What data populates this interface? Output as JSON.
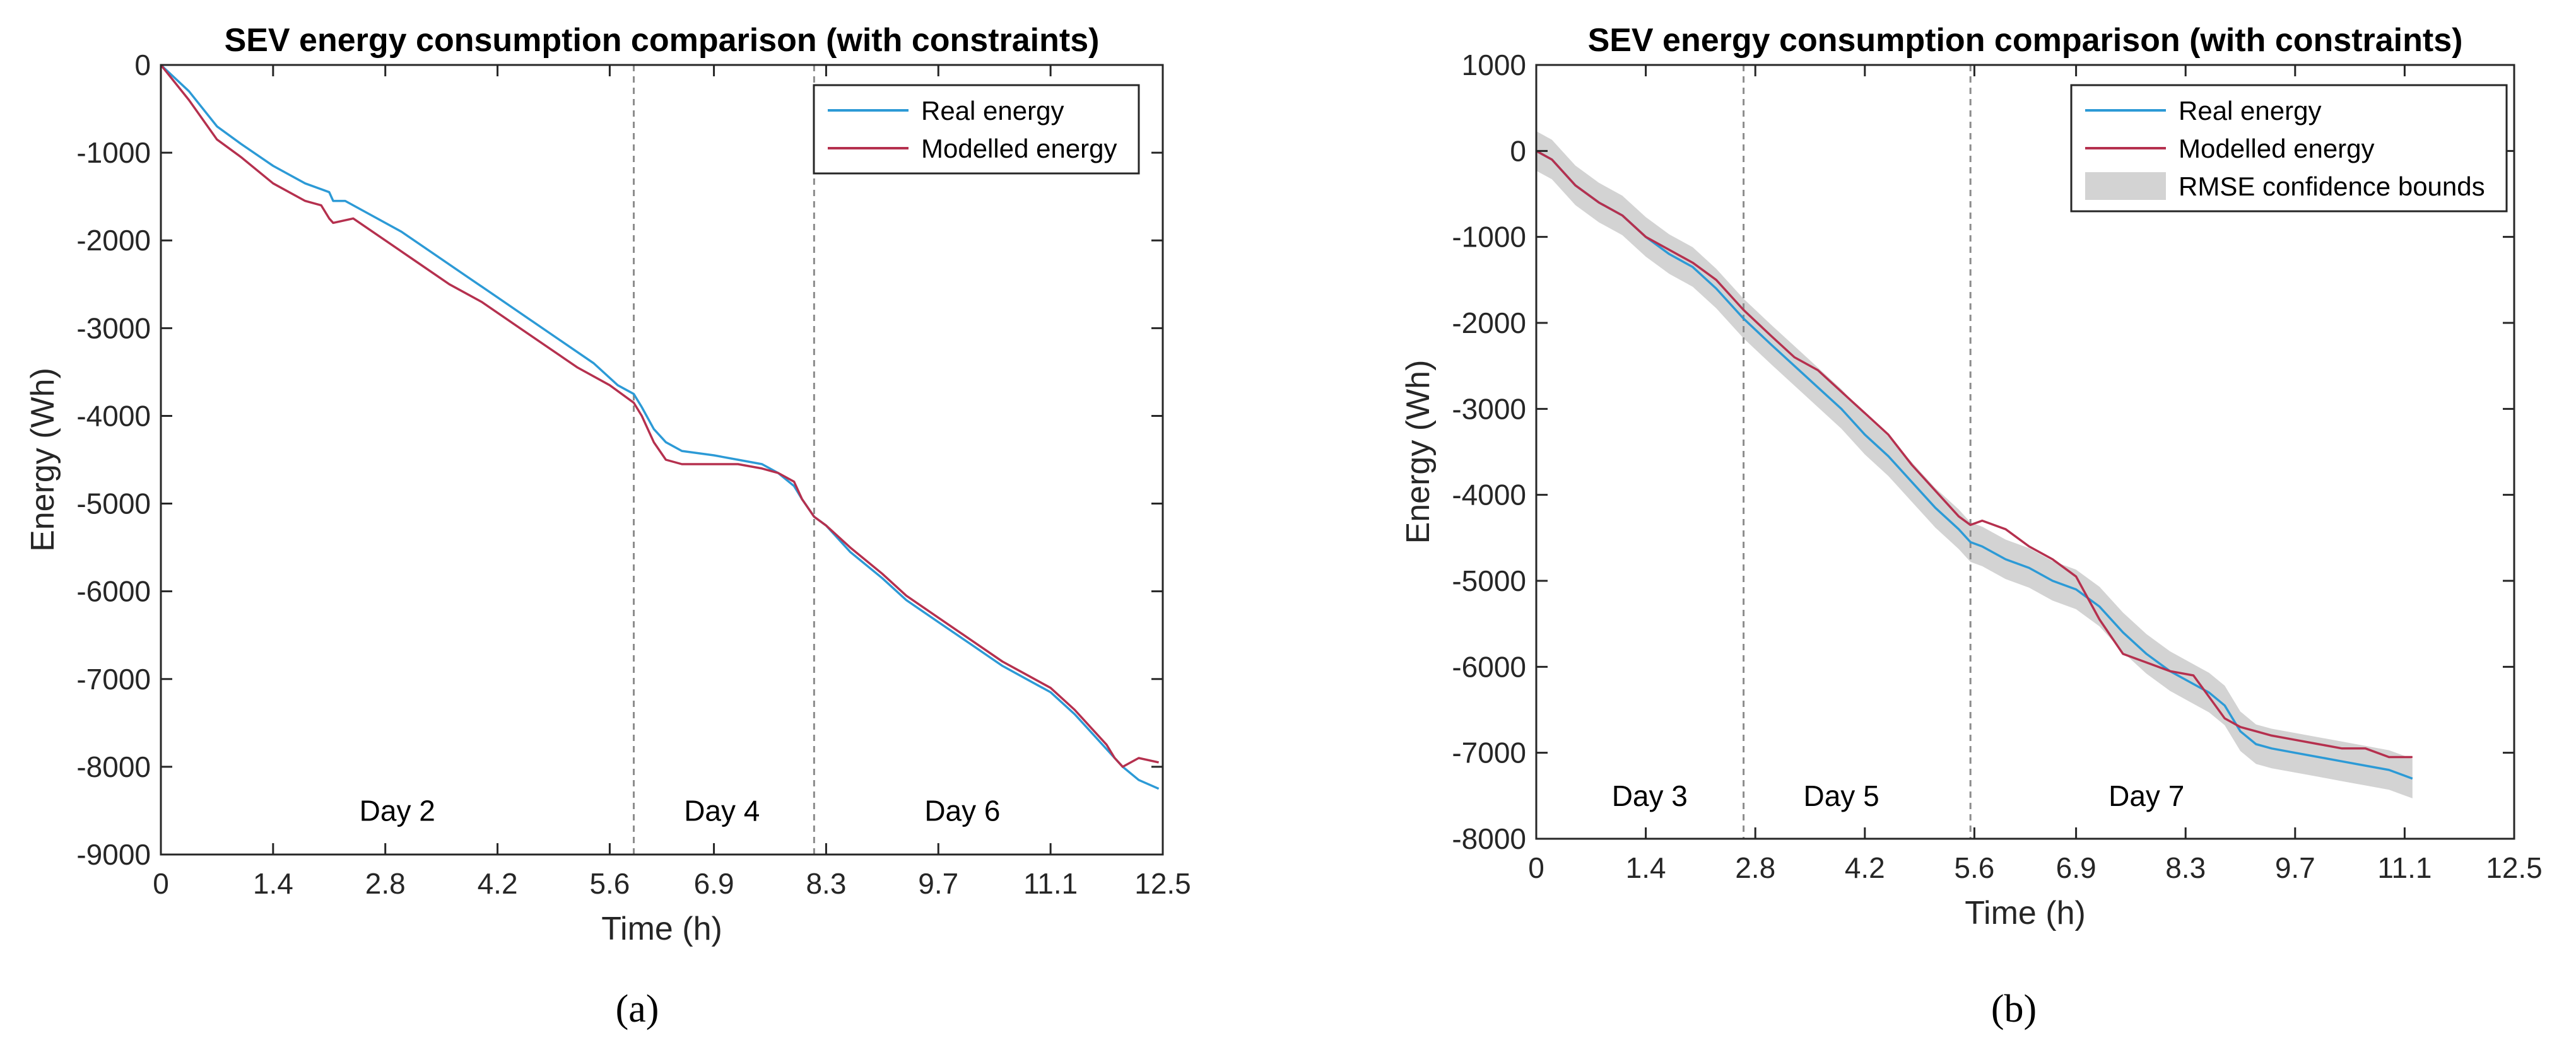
{
  "colors": {
    "real": "#2c9ad6",
    "modelled": "#b5304e",
    "band": "#d3d3d3",
    "divider": "#8c8c8c"
  },
  "captions": [
    "(a)",
    "(b)"
  ],
  "chart_data": [
    {
      "type": "line",
      "title": "SEV energy consumption comparison (with constraints)",
      "xlabel": "Time (h)",
      "ylabel": "Energy (Wh)",
      "xlim": [
        0,
        12.5
      ],
      "ylim": [
        -9000,
        0
      ],
      "xticks": [
        0,
        1.4,
        2.8,
        4.2,
        5.6,
        6.9,
        8.3,
        9.7,
        11.1,
        12.5
      ],
      "xtick_labels": [
        "0",
        "1.4",
        "2.8",
        "4.2",
        "5.6",
        "6.9",
        "8.3",
        "9.7",
        "11.1",
        "12.5"
      ],
      "yticks": [
        0,
        -1000,
        -2000,
        -3000,
        -4000,
        -5000,
        -6000,
        -7000,
        -8000,
        -9000
      ],
      "ytick_labels": [
        "0",
        "-1000",
        "-2000",
        "-3000",
        "-4000",
        "-5000",
        "-6000",
        "-7000",
        "-8000",
        "-9000"
      ],
      "grid": false,
      "legend": "top-right",
      "dividers": [
        5.9,
        8.15
      ],
      "day_labels": [
        {
          "text": "Day 2",
          "x": 2.95,
          "y": -8500
        },
        {
          "text": "Day 4",
          "x": 7.0,
          "y": -8500
        },
        {
          "text": "Day 6",
          "x": 10.0,
          "y": -8500
        }
      ],
      "series": [
        {
          "name": "Real energy",
          "x": [
            0,
            0.35,
            0.7,
            1.0,
            1.4,
            1.8,
            2.1,
            2.15,
            2.3,
            2.6,
            3.0,
            3.4,
            3.8,
            4.2,
            4.6,
            5.0,
            5.4,
            5.7,
            5.9,
            6.0,
            6.15,
            6.3,
            6.5,
            6.9,
            7.2,
            7.5,
            7.7,
            7.9,
            8.0,
            8.15,
            8.3,
            8.6,
            9.0,
            9.3,
            9.7,
            10.1,
            10.5,
            10.8,
            11.1,
            11.4,
            11.6,
            11.8,
            12.0,
            12.2,
            12.45
          ],
          "y": [
            0,
            -300,
            -700,
            -900,
            -1150,
            -1350,
            -1450,
            -1550,
            -1550,
            -1700,
            -1900,
            -2150,
            -2400,
            -2650,
            -2900,
            -3150,
            -3400,
            -3650,
            -3750,
            -3900,
            -4150,
            -4300,
            -4400,
            -4450,
            -4500,
            -4550,
            -4650,
            -4800,
            -4950,
            -5150,
            -5250,
            -5550,
            -5850,
            -6100,
            -6350,
            -6600,
            -6850,
            -7000,
            -7150,
            -7400,
            -7600,
            -7800,
            -8000,
            -8150,
            -8250
          ]
        },
        {
          "name": "Modelled energy",
          "x": [
            0,
            0.35,
            0.7,
            1.0,
            1.4,
            1.8,
            2.0,
            2.1,
            2.15,
            2.4,
            2.8,
            3.2,
            3.6,
            4.0,
            4.4,
            4.8,
            5.2,
            5.6,
            5.9,
            6.0,
            6.15,
            6.3,
            6.5,
            6.9,
            7.2,
            7.5,
            7.7,
            7.9,
            8.0,
            8.15,
            8.3,
            8.6,
            9.0,
            9.3,
            9.7,
            10.1,
            10.5,
            10.8,
            11.1,
            11.4,
            11.6,
            11.8,
            11.9,
            12.0,
            12.2,
            12.45
          ],
          "y": [
            0,
            -400,
            -850,
            -1050,
            -1350,
            -1550,
            -1600,
            -1750,
            -1800,
            -1750,
            -2000,
            -2250,
            -2500,
            -2700,
            -2950,
            -3200,
            -3450,
            -3650,
            -3850,
            -4000,
            -4300,
            -4500,
            -4550,
            -4550,
            -4550,
            -4600,
            -4650,
            -4750,
            -4950,
            -5150,
            -5250,
            -5500,
            -5800,
            -6050,
            -6300,
            -6550,
            -6800,
            -6950,
            -7100,
            -7350,
            -7550,
            -7750,
            -7900,
            -8000,
            -7900,
            -7950
          ]
        }
      ]
    },
    {
      "type": "line",
      "title": "SEV energy consumption comparison (with constraints)",
      "xlabel": "Time (h)",
      "ylabel": "Energy (Wh)",
      "xlim": [
        0,
        12.5
      ],
      "ylim": [
        -8000,
        1000
      ],
      "xticks": [
        0,
        1.4,
        2.8,
        4.2,
        5.6,
        6.9,
        8.3,
        9.7,
        11.1,
        12.5
      ],
      "xtick_labels": [
        "0",
        "1.4",
        "2.8",
        "4.2",
        "5.6",
        "6.9",
        "8.3",
        "9.7",
        "11.1",
        "12.5"
      ],
      "yticks": [
        1000,
        0,
        -1000,
        -2000,
        -3000,
        -4000,
        -5000,
        -6000,
        -7000,
        -8000
      ],
      "ytick_labels": [
        "1000",
        "0",
        "-1000",
        "-2000",
        "-3000",
        "-4000",
        "-5000",
        "-6000",
        "-7000",
        "-8000"
      ],
      "grid": false,
      "legend": "top-right",
      "dividers": [
        2.65,
        5.55
      ],
      "day_labels": [
        {
          "text": "Day 3",
          "x": 1.45,
          "y": -7500
        },
        {
          "text": "Day 5",
          "x": 3.9,
          "y": -7500
        },
        {
          "text": "Day 7",
          "x": 7.8,
          "y": -7500
        }
      ],
      "band": {
        "name": "RMSE confidence bounds",
        "half_width": 230
      },
      "series": [
        {
          "name": "Real energy",
          "x": [
            0,
            0.2,
            0.5,
            0.8,
            1.1,
            1.4,
            1.7,
            2.0,
            2.3,
            2.65,
            3.0,
            3.3,
            3.6,
            3.9,
            4.2,
            4.5,
            4.8,
            5.1,
            5.4,
            5.55,
            5.7,
            6.0,
            6.3,
            6.6,
            6.9,
            7.2,
            7.5,
            7.8,
            8.1,
            8.4,
            8.6,
            8.8,
            9.0,
            9.2,
            9.4,
            9.7,
            10.0,
            10.3,
            10.6,
            10.9,
            11.2
          ],
          "y": [
            0,
            -100,
            -400,
            -600,
            -750,
            -1000,
            -1200,
            -1350,
            -1600,
            -1950,
            -2250,
            -2500,
            -2750,
            -3000,
            -3300,
            -3550,
            -3850,
            -4150,
            -4400,
            -4550,
            -4600,
            -4750,
            -4850,
            -5000,
            -5100,
            -5300,
            -5600,
            -5850,
            -6050,
            -6200,
            -6300,
            -6450,
            -6750,
            -6900,
            -6950,
            -7000,
            -7050,
            -7100,
            -7150,
            -7200,
            -7300
          ]
        },
        {
          "name": "Modelled energy",
          "x": [
            0,
            0.2,
            0.5,
            0.8,
            1.1,
            1.4,
            1.7,
            2.0,
            2.3,
            2.65,
            3.0,
            3.3,
            3.6,
            3.9,
            4.2,
            4.5,
            4.8,
            5.1,
            5.4,
            5.55,
            5.7,
            6.0,
            6.3,
            6.6,
            6.9,
            7.2,
            7.5,
            7.8,
            8.1,
            8.4,
            8.6,
            8.8,
            9.0,
            9.2,
            9.4,
            9.7,
            10.0,
            10.3,
            10.6,
            10.9,
            11.2
          ],
          "y": [
            0,
            -100,
            -400,
            -600,
            -750,
            -1000,
            -1150,
            -1300,
            -1500,
            -1850,
            -2150,
            -2400,
            -2550,
            -2800,
            -3050,
            -3300,
            -3650,
            -3950,
            -4250,
            -4350,
            -4300,
            -4400,
            -4600,
            -4750,
            -4950,
            -5450,
            -5850,
            -5950,
            -6050,
            -6100,
            -6350,
            -6600,
            -6700,
            -6750,
            -6800,
            -6850,
            -6900,
            -6950,
            -6950,
            -7050,
            -7050
          ]
        }
      ]
    }
  ]
}
